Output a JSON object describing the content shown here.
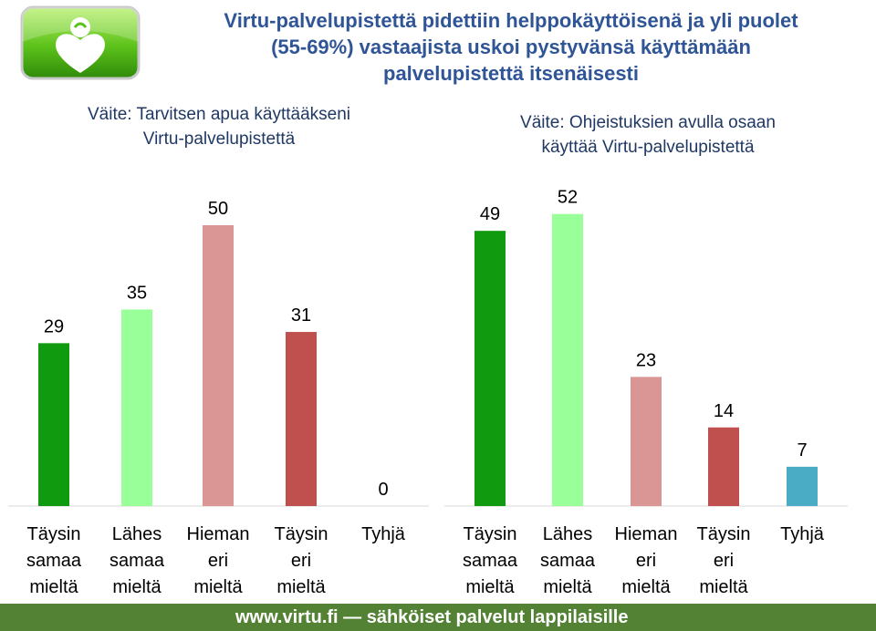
{
  "title_lines": [
    "Virtu-palvelupistettä pidettiin helppokäyttöisenä ja yli puolet",
    "(55-69%) vastaajista uskoi pystyvänsä käyttämään",
    "palvelupistettä itsenäisesti"
  ],
  "footer": "www.virtu.fi — sähköiset palvelut lappilaisille",
  "colors": {
    "title": "#2f5597",
    "subtitle": "#1f3864",
    "footer_bg": "#548235",
    "bar_colors": [
      "#0f9a0f",
      "#99ff99",
      "#d99694",
      "#c0504d",
      "#4bacc6"
    ]
  },
  "chart_data": [
    {
      "type": "bar",
      "title": "Väite: Tarvitsen apua käyttääkseni Virtu-palvelupistettä",
      "title_lines": [
        "Väite: Tarvitsen apua käyttääkseni",
        "Virtu-palvelupistettä"
      ],
      "categories": [
        "Täysin samaa mieltä",
        "Lähes samaa mieltä",
        "Hieman eri mieltä",
        "Täysin eri mieltä",
        "Tyhjä"
      ],
      "category_lines": [
        [
          "Täysin",
          "samaa",
          "mieltä"
        ],
        [
          "Lähes",
          "samaa",
          "mieltä"
        ],
        [
          "Hieman",
          "eri",
          "mieltä"
        ],
        [
          "Täysin",
          "eri",
          "mieltä"
        ],
        [
          "Tyhjä"
        ]
      ],
      "values": [
        29,
        35,
        50,
        31,
        0
      ],
      "data_labels": true,
      "ylim": [
        0,
        52
      ],
      "grid": false,
      "legend": "none"
    },
    {
      "type": "bar",
      "title": "Väite: Ohjeistuksien avulla osaan käyttää Virtu-palvelupistettä",
      "title_lines": [
        "Väite: Ohjeistuksien avulla osaan",
        "käyttää Virtu-palvelupistettä"
      ],
      "categories": [
        "Täysin samaa mieltä",
        "Lähes samaa mieltä",
        "Hieman eri mieltä",
        "Täysin eri mieltä",
        "Tyhjä"
      ],
      "category_lines": [
        [
          "Täysin",
          "samaa",
          "mieltä"
        ],
        [
          "Lähes",
          "samaa",
          "mieltä"
        ],
        [
          "Hieman",
          "eri",
          "mieltä"
        ],
        [
          "Täysin",
          "eri",
          "mieltä"
        ],
        [
          "Tyhjä"
        ]
      ],
      "values": [
        49,
        52,
        23,
        14,
        7
      ],
      "data_labels": true,
      "ylim": [
        0,
        52
      ],
      "grid": false,
      "legend": "none"
    }
  ]
}
